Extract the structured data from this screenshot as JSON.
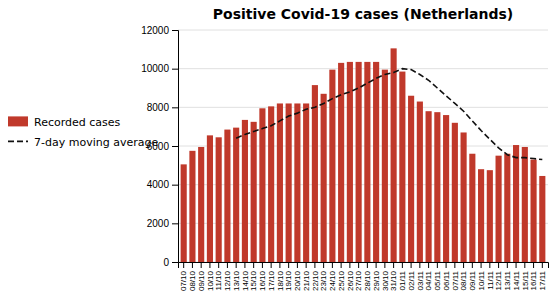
{
  "chart_data": {
    "type": "bar",
    "title": "Positive Covid-19 cases (Netherlands)",
    "categories": [
      "07/10",
      "08/10",
      "09/10",
      "10/10",
      "11/10",
      "12/10",
      "13/10",
      "14/10",
      "15/10",
      "16/10",
      "17/10",
      "18/10",
      "19/10",
      "20/10",
      "21/10",
      "22/10",
      "23/10",
      "24/10",
      "25/10",
      "26/10",
      "27/10",
      "28/10",
      "29/10",
      "30/10",
      "31/10",
      "01/11",
      "02/11",
      "03/11",
      "04/11",
      "05/11",
      "06/11",
      "07/11",
      "08/11",
      "09/11",
      "10/11",
      "11/11",
      "12/11",
      "13/11",
      "14/11",
      "15/11",
      "16/11",
      "17/11"
    ],
    "series": [
      {
        "name": "Recorded cases",
        "type": "bar",
        "color": "#c0392b",
        "values": [
          5050,
          5750,
          5950,
          6550,
          6450,
          6850,
          6950,
          7350,
          7250,
          7950,
          8050,
          8200,
          8200,
          8200,
          8200,
          9150,
          8700,
          9950,
          10300,
          10350,
          10350,
          10350,
          10350,
          9950,
          11050,
          9850,
          8600,
          8300,
          7800,
          7750,
          7600,
          7200,
          6700,
          5600,
          4800,
          4750,
          5500,
          5600,
          6050,
          5950,
          5300,
          4450
        ]
      },
      {
        "name": "7-day moving average",
        "type": "line",
        "color": "#111111",
        "line_style": "dashed",
        "values": [
          null,
          null,
          null,
          null,
          null,
          null,
          6400,
          6600,
          6750,
          6900,
          7050,
          7300,
          7550,
          7700,
          7900,
          8000,
          8200,
          8450,
          8650,
          8800,
          9000,
          9250,
          9500,
          9700,
          9800,
          10000,
          9950,
          9700,
          9400,
          9000,
          8600,
          8200,
          7800,
          7300,
          6800,
          6350,
          5900,
          5550,
          5400,
          5400,
          5350,
          5300
        ]
      }
    ],
    "ylim": [
      0,
      12000
    ],
    "yticks": [
      0,
      2000,
      4000,
      6000,
      8000,
      10000,
      12000
    ],
    "grid": true,
    "legend": "left"
  }
}
